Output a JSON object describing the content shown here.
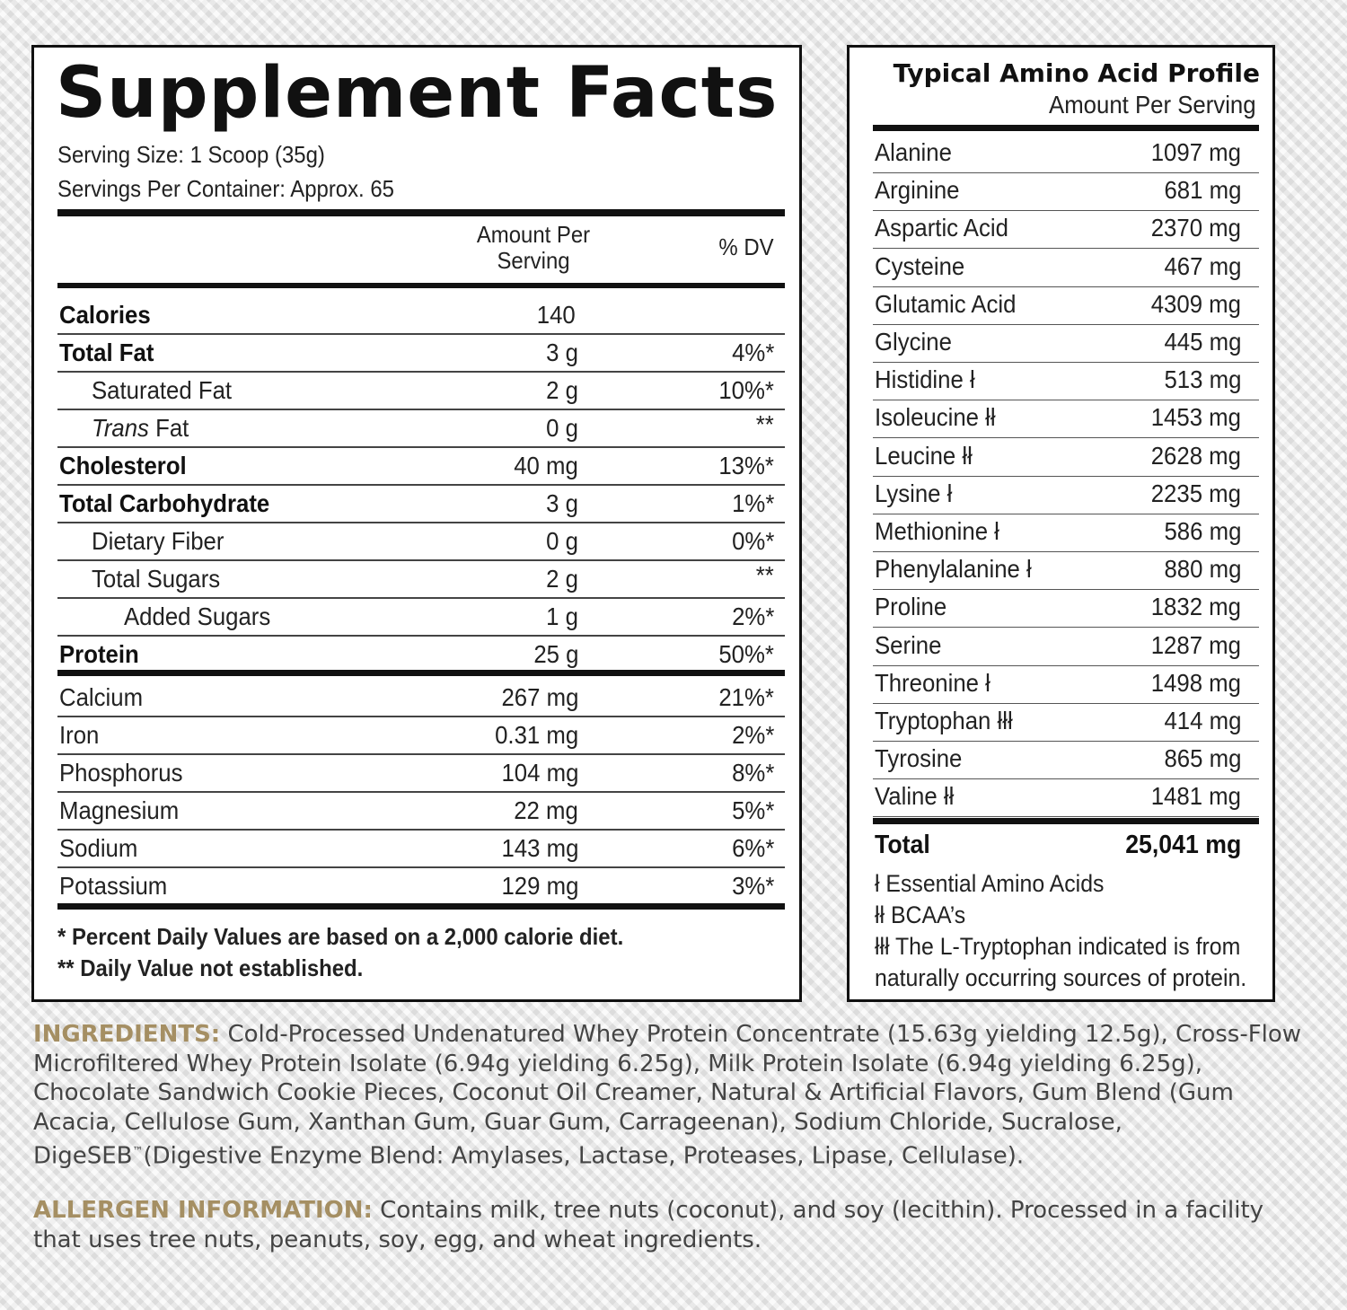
{
  "supplement_facts": {
    "title": "Supplement Facts",
    "serving_size": "Serving Size: 1 Scoop (35g)",
    "servings_per_container": "Servings Per Container: Approx. 65",
    "col_amount_line1": "Amount Per",
    "col_amount_line2": "Serving",
    "col_dv": "% DV",
    "rows": [
      {
        "label": "Calories",
        "amount": "140",
        "dv": ""
      },
      {
        "label": "Total Fat",
        "amount": "3 g",
        "dv": "4%*"
      },
      {
        "label": "Saturated Fat",
        "amount": "2 g",
        "dv": "10%*"
      },
      {
        "label_italic": "Trans",
        "label": "Fat",
        "amount": "0 g",
        "dv": "**"
      },
      {
        "label": "Cholesterol",
        "amount": "40 mg",
        "dv": "13%*"
      },
      {
        "label": "Total Carbohydrate",
        "amount": "3 g",
        "dv": "1%*"
      },
      {
        "label": "Dietary Fiber",
        "amount": "0 g",
        "dv": "0%*"
      },
      {
        "label": "Total Sugars",
        "amount": "2 g",
        "dv": "**"
      },
      {
        "label": "Added Sugars",
        "amount": "1 g",
        "dv": "2%*"
      },
      {
        "label": "Protein",
        "amount": "25 g",
        "dv": "50%*"
      },
      {
        "label": "Calcium",
        "amount": "267 mg",
        "dv": "21%*"
      },
      {
        "label": "Iron",
        "amount": "0.31 mg",
        "dv": "2%*"
      },
      {
        "label": "Phosphorus",
        "amount": "104 mg",
        "dv": "8%*"
      },
      {
        "label": "Magnesium",
        "amount": "22 mg",
        "dv": "5%*"
      },
      {
        "label": "Sodium",
        "amount": "143 mg",
        "dv": "6%*"
      },
      {
        "label": "Potassium",
        "amount": "129 mg",
        "dv": "3%*"
      }
    ],
    "footnote1": "* Percent Daily Values are based on a 2,000 calorie diet.",
    "footnote2": "** Daily Value not established."
  },
  "amino_profile": {
    "title": "Typical Amino Acid Profile",
    "subtitle": "Amount Per Serving",
    "rows": [
      {
        "name": "Alanine",
        "value": "1097 mg"
      },
      {
        "name": "Arginine",
        "value": "681 mg"
      },
      {
        "name": "Aspartic Acid",
        "value": "2370 mg"
      },
      {
        "name": "Cysteine",
        "value": "467 mg"
      },
      {
        "name": "Glutamic Acid",
        "value": "4309 mg"
      },
      {
        "name": "Glycine",
        "value": "445 mg"
      },
      {
        "name": "Histidine ł",
        "value": "513 mg"
      },
      {
        "name": "Isoleucine łł",
        "value": "1453 mg"
      },
      {
        "name": "Leucine łł",
        "value": "2628 mg"
      },
      {
        "name": "Lysine ł",
        "value": "2235 mg"
      },
      {
        "name": "Methionine ł",
        "value": "586 mg"
      },
      {
        "name": "Phenylalanine ł",
        "value": "880 mg"
      },
      {
        "name": "Proline",
        "value": "1832 mg"
      },
      {
        "name": "Serine",
        "value": "1287 mg"
      },
      {
        "name": "Threonine ł",
        "value": "1498 mg"
      },
      {
        "name": "Tryptophan łłł",
        "value": "414 mg"
      },
      {
        "name": "Tyrosine",
        "value": "865 mg"
      },
      {
        "name": "Valine łł",
        "value": "1481 mg"
      }
    ],
    "total_label": "Total",
    "total_value": "25,041 mg",
    "notes": [
      "ł Essential Amino Acids",
      "łł BCAA’s",
      "łłł The L-Tryptophan indicated is from",
      "naturally occurring sources of protein."
    ]
  },
  "ingredients": {
    "label": "INGREDIENTS:",
    "text_before_tm": " Cold-Processed Undenatured Whey Protein Concentrate (15.63g yielding 12.5g), Cross-Flow Microfiltered Whey Protein Isolate (6.94g yielding 6.25g), Milk Protein Isolate (6.94g yielding 6.25g), Chocolate Sandwich Cookie Pieces, Coconut Oil Creamer, Natural & Artificial Flavors, Gum Blend (Gum Acacia, Cellulose Gum, Xanthan Gum, Guar Gum, Carrageenan), Sodium Chloride, Sucralose, DigeSEB",
    "tm": "™",
    "text_after_tm": "(Digestive Enzyme Blend: Amylases, Lactase, Proteases, Lipase, Cellulase)."
  },
  "allergen": {
    "label": "ALLERGEN INFORMATION:",
    "text": " Contains milk, tree nuts (coconut), and soy (lecithin). Processed in a facility that uses tree nuts, peanuts, soy, egg, and wheat ingredients."
  },
  "colors": {
    "heading_accent": "#a58f63",
    "rule": "#111111"
  }
}
